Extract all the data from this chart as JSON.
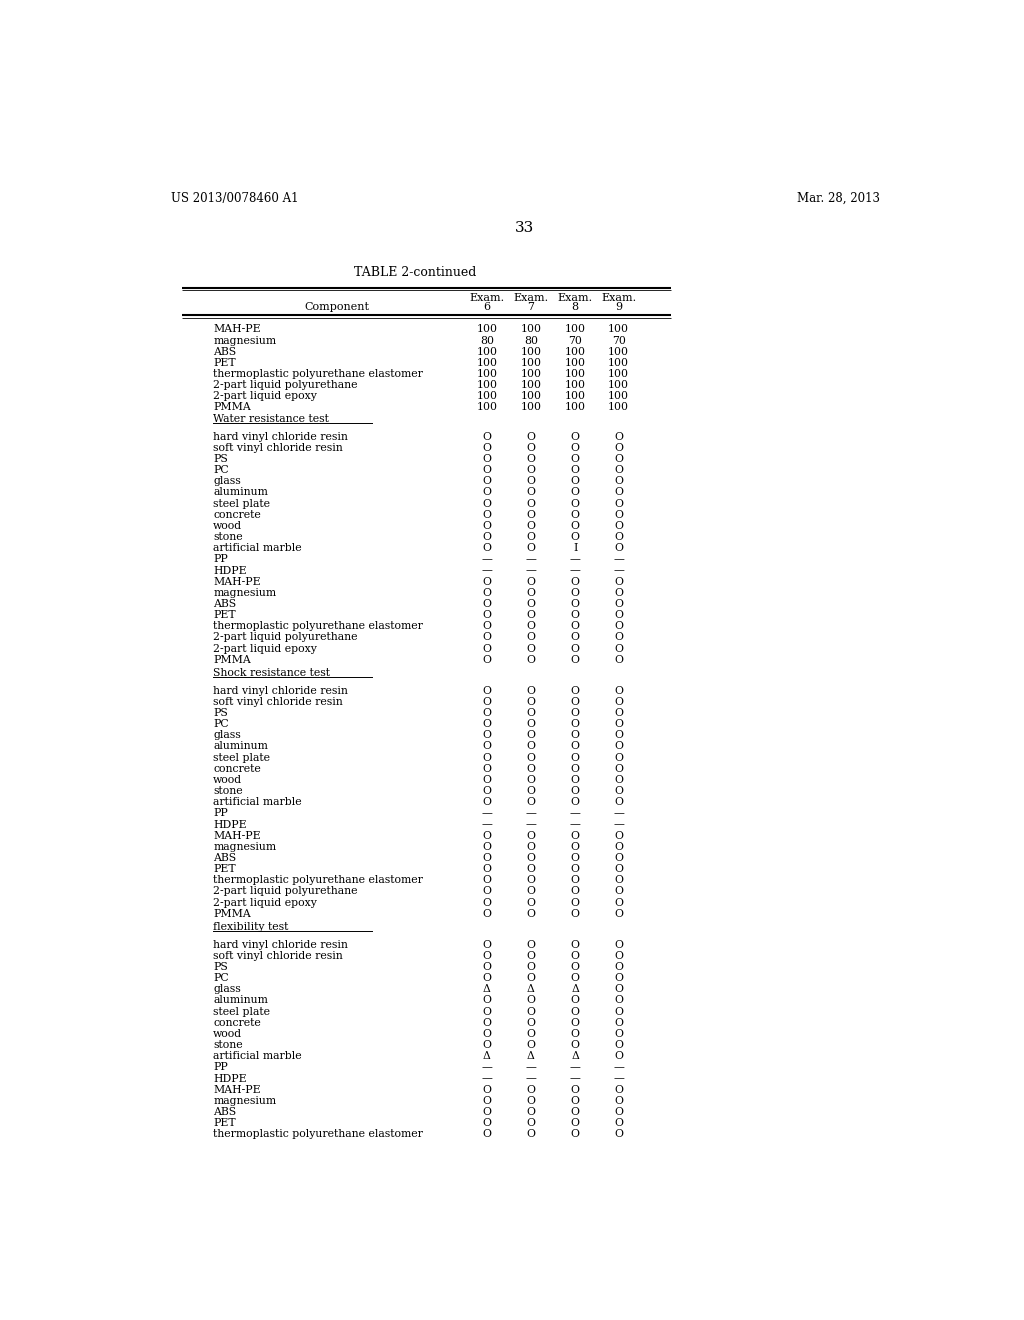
{
  "title": "TABLE 2-continued",
  "page_num": "33",
  "patent_left": "US 2013/0078460 A1",
  "patent_right": "Mar. 28, 2013",
  "header_values": [
    [
      "MAH-PE",
      "100",
      "100",
      "100",
      "100"
    ],
    [
      "magnesium",
      "80",
      "80",
      "70",
      "70"
    ],
    [
      "ABS",
      "100",
      "100",
      "100",
      "100"
    ],
    [
      "PET",
      "100",
      "100",
      "100",
      "100"
    ],
    [
      "thermoplastic polyurethane elastomer",
      "100",
      "100",
      "100",
      "100"
    ],
    [
      "2-part liquid polyurethane",
      "100",
      "100",
      "100",
      "100"
    ],
    [
      "2-part liquid epoxy",
      "100",
      "100",
      "100",
      "100"
    ],
    [
      "PMMA",
      "100",
      "100",
      "100",
      "100"
    ]
  ],
  "section1_label": "Water resistance test",
  "section1_rows": [
    [
      "hard vinyl chloride resin",
      "O",
      "O",
      "O",
      "O"
    ],
    [
      "soft vinyl chloride resin",
      "O",
      "O",
      "O",
      "O"
    ],
    [
      "PS",
      "O",
      "O",
      "O",
      "O"
    ],
    [
      "PC",
      "O",
      "O",
      "O",
      "O"
    ],
    [
      "glass",
      "O",
      "O",
      "O",
      "O"
    ],
    [
      "aluminum",
      "O",
      "O",
      "O",
      "O"
    ],
    [
      "steel plate",
      "O",
      "O",
      "O",
      "O"
    ],
    [
      "concrete",
      "O",
      "O",
      "O",
      "O"
    ],
    [
      "wood",
      "O",
      "O",
      "O",
      "O"
    ],
    [
      "stone",
      "O",
      "O",
      "O",
      "O"
    ],
    [
      "artificial marble",
      "O",
      "O",
      "I",
      "O"
    ],
    [
      "PP",
      "—",
      "—",
      "—",
      "—"
    ],
    [
      "HDPE",
      "—",
      "—",
      "—",
      "—"
    ],
    [
      "MAH-PE",
      "O",
      "O",
      "O",
      "O"
    ],
    [
      "magnesium",
      "O",
      "O",
      "O",
      "O"
    ],
    [
      "ABS",
      "O",
      "O",
      "O",
      "O"
    ],
    [
      "PET",
      "O",
      "O",
      "O",
      "O"
    ],
    [
      "thermoplastic polyurethane elastomer",
      "O",
      "O",
      "O",
      "O"
    ],
    [
      "2-part liquid polyurethane",
      "O",
      "O",
      "O",
      "O"
    ],
    [
      "2-part liquid epoxy",
      "O",
      "O",
      "O",
      "O"
    ],
    [
      "PMMA",
      "O",
      "O",
      "O",
      "O"
    ]
  ],
  "section2_label": "Shock resistance test",
  "section2_rows": [
    [
      "hard vinyl chloride resin",
      "O",
      "O",
      "O",
      "O"
    ],
    [
      "soft vinyl chloride resin",
      "O",
      "O",
      "O",
      "O"
    ],
    [
      "PS",
      "O",
      "O",
      "O",
      "O"
    ],
    [
      "PC",
      "O",
      "O",
      "O",
      "O"
    ],
    [
      "glass",
      "O",
      "O",
      "O",
      "O"
    ],
    [
      "aluminum",
      "O",
      "O",
      "O",
      "O"
    ],
    [
      "steel plate",
      "O",
      "O",
      "O",
      "O"
    ],
    [
      "concrete",
      "O",
      "O",
      "O",
      "O"
    ],
    [
      "wood",
      "O",
      "O",
      "O",
      "O"
    ],
    [
      "stone",
      "O",
      "O",
      "O",
      "O"
    ],
    [
      "artificial marble",
      "O",
      "O",
      "O",
      "O"
    ],
    [
      "PP",
      "—",
      "—",
      "—",
      "—"
    ],
    [
      "HDPE",
      "—",
      "—",
      "—",
      "—"
    ],
    [
      "MAH-PE",
      "O",
      "O",
      "O",
      "O"
    ],
    [
      "magnesium",
      "O",
      "O",
      "O",
      "O"
    ],
    [
      "ABS",
      "O",
      "O",
      "O",
      "O"
    ],
    [
      "PET",
      "O",
      "O",
      "O",
      "O"
    ],
    [
      "thermoplastic polyurethane elastomer",
      "O",
      "O",
      "O",
      "O"
    ],
    [
      "2-part liquid polyurethane",
      "O",
      "O",
      "O",
      "O"
    ],
    [
      "2-part liquid epoxy",
      "O",
      "O",
      "O",
      "O"
    ],
    [
      "PMMA",
      "O",
      "O",
      "O",
      "O"
    ]
  ],
  "section3_label": "flexibility test",
  "section3_rows": [
    [
      "hard vinyl chloride resin",
      "O",
      "O",
      "O",
      "O"
    ],
    [
      "soft vinyl chloride resin",
      "O",
      "O",
      "O",
      "O"
    ],
    [
      "PS",
      "O",
      "O",
      "O",
      "O"
    ],
    [
      "PC",
      "O",
      "O",
      "O",
      "O"
    ],
    [
      "glass",
      "Δ",
      "Δ",
      "Δ",
      "O"
    ],
    [
      "aluminum",
      "O",
      "O",
      "O",
      "O"
    ],
    [
      "steel plate",
      "O",
      "O",
      "O",
      "O"
    ],
    [
      "concrete",
      "O",
      "O",
      "O",
      "O"
    ],
    [
      "wood",
      "O",
      "O",
      "O",
      "O"
    ],
    [
      "stone",
      "O",
      "O",
      "O",
      "O"
    ],
    [
      "artificial marble",
      "Δ",
      "Δ",
      "Δ",
      "O"
    ],
    [
      "PP",
      "—",
      "—",
      "—",
      "—"
    ],
    [
      "HDPE",
      "—",
      "—",
      "—",
      "—"
    ],
    [
      "MAH-PE",
      "O",
      "O",
      "O",
      "O"
    ],
    [
      "magnesium",
      "O",
      "O",
      "O",
      "O"
    ],
    [
      "ABS",
      "O",
      "O",
      "O",
      "O"
    ],
    [
      "PET",
      "O",
      "O",
      "O",
      "O"
    ],
    [
      "thermoplastic polyurethane elastomer",
      "O",
      "O",
      "O",
      "O"
    ]
  ],
  "bg_color": "#ffffff",
  "text_color": "#000000"
}
